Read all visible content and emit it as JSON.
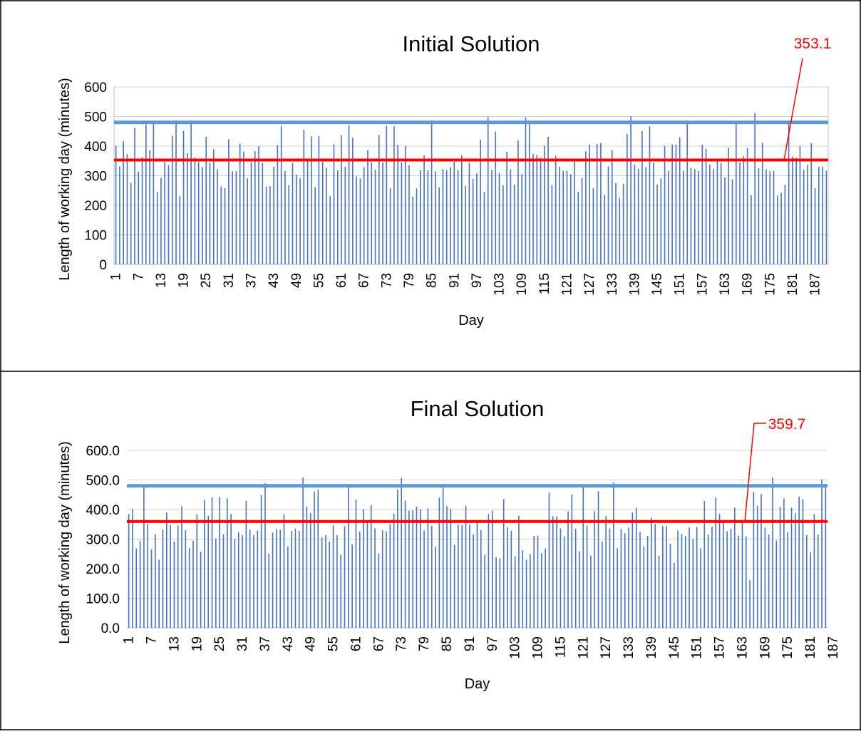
{
  "chart_data": [
    {
      "type": "bar",
      "title": "Initial Solution",
      "xlabel": "Day",
      "ylabel": "Length of working day (minutes)",
      "ylim": [
        0,
        600
      ],
      "yticks": [
        "0",
        "100",
        "200",
        "300",
        "400",
        "500",
        "600"
      ],
      "xtick_labels": [
        "1",
        "7",
        "13",
        "19",
        "25",
        "31",
        "37",
        "43",
        "49",
        "55",
        "61",
        "67",
        "73",
        "79",
        "85",
        "91",
        "97",
        "103",
        "109",
        "115",
        "121",
        "127",
        "133",
        "139",
        "145",
        "151",
        "157",
        "163",
        "169",
        "175",
        "181",
        "187"
      ],
      "grid": true,
      "series": [
        {
          "values": [
            401,
            331,
            416,
            373,
            276,
            461,
            314,
            362,
            473,
            386,
            478,
            245,
            293,
            347,
            336,
            435,
            487,
            231,
            452,
            376,
            487,
            362,
            346,
            329,
            432,
            344,
            389,
            321,
            264,
            258,
            423,
            315,
            315,
            408,
            381,
            291,
            346,
            383,
            400,
            343,
            263,
            265,
            330,
            403,
            469,
            316,
            268,
            343,
            304,
            291,
            455,
            349,
            433,
            261,
            434,
            347,
            327,
            231,
            406,
            318,
            437,
            330,
            471,
            428,
            298,
            291,
            329,
            386,
            346,
            320,
            438,
            345,
            468,
            257,
            467,
            404,
            345,
            400,
            335,
            229,
            257,
            318,
            369,
            318,
            487,
            315,
            260,
            322,
            318,
            329,
            347,
            319,
            369,
            266,
            344,
            289,
            308,
            422,
            244,
            499,
            319,
            449,
            309,
            267,
            381,
            321,
            270,
            419,
            305,
            497,
            479,
            374,
            370,
            361,
            401,
            432,
            268,
            367,
            330,
            317,
            317,
            305,
            349,
            245,
            292,
            382,
            405,
            257,
            407,
            410,
            235,
            331,
            386,
            275,
            225,
            272,
            441,
            500,
            337,
            323,
            451,
            329,
            467,
            344,
            270,
            291,
            400,
            317,
            405,
            405,
            430,
            317,
            486,
            327,
            322,
            316,
            404,
            390,
            338,
            322,
            353,
            343,
            294,
            395,
            288,
            481,
            345,
            366,
            394,
            234,
            512,
            325,
            411,
            322,
            315,
            317,
            233,
            242,
            269,
            475,
            365,
            360,
            401,
            320,
            336,
            410,
            258,
            330,
            330,
            317
          ]
        }
      ],
      "reference_lines": [
        {
          "value": 480,
          "color": "#5b9bd5"
        },
        {
          "value": 353.1,
          "color": "#ff0000",
          "label": "353.1"
        }
      ],
      "bar_color": "#4472c4"
    },
    {
      "type": "bar",
      "title": "Final Solution",
      "xlabel": "Day",
      "ylabel": "Length of working day (minutes)",
      "ylim": [
        0,
        600
      ],
      "yticks": [
        "0.0",
        "100.0",
        "200.0",
        "300.0",
        "400.0",
        "500.0",
        "600.0"
      ],
      "xtick_labels": [
        "1",
        "7",
        "13",
        "19",
        "25",
        "31",
        "37",
        "43",
        "49",
        "55",
        "61",
        "67",
        "73",
        "79",
        "85",
        "91",
        "97",
        "103",
        "109",
        "115",
        "121",
        "127",
        "133",
        "139",
        "145",
        "151",
        "157",
        "163",
        "169",
        "175",
        "181",
        "187"
      ],
      "grid": true,
      "series": [
        {
          "values": [
            385,
            402,
            268,
            294,
            479,
            351,
            265,
            316,
            230,
            332,
            390,
            348,
            292,
            346,
            411,
            330,
            269,
            295,
            384,
            257,
            432,
            378,
            441,
            301,
            442,
            316,
            438,
            385,
            299,
            323,
            313,
            429,
            332,
            313,
            329,
            449,
            489,
            251,
            322,
            334,
            331,
            384,
            276,
            328,
            335,
            327,
            508,
            410,
            387,
            461,
            467,
            305,
            314,
            292,
            346,
            314,
            247,
            344,
            476,
            282,
            434,
            326,
            401,
            356,
            415,
            336,
            251,
            330,
            326,
            350,
            386,
            468,
            506,
            430,
            396,
            397,
            410,
            401,
            329,
            404,
            345,
            274,
            440,
            474,
            411,
            403,
            281,
            350,
            347,
            413,
            349,
            316,
            361,
            330,
            247,
            384,
            396,
            239,
            235,
            435,
            340,
            328,
            242,
            379,
            263,
            230,
            249,
            311,
            312,
            252,
            268,
            457,
            377,
            377,
            336,
            309,
            394,
            451,
            335,
            259,
            484,
            346,
            244,
            395,
            462,
            292,
            377,
            336,
            491,
            269,
            334,
            320,
            339,
            390,
            406,
            325,
            276,
            311,
            372,
            351,
            244,
            344,
            344,
            284,
            220,
            329,
            317,
            311,
            340,
            300,
            341,
            269,
            429,
            315,
            342,
            440,
            385,
            363,
            326,
            335,
            406,
            312,
            361,
            309,
            162,
            459,
            412,
            452,
            339,
            315,
            508,
            295,
            409,
            437,
            324,
            406,
            387,
            444,
            434,
            314,
            255,
            385,
            315,
            502,
            486
          ]
        }
      ],
      "reference_lines": [
        {
          "value": 480,
          "color": "#5b9bd5"
        },
        {
          "value": 359.7,
          "color": "#ff0000",
          "label": "359.7"
        }
      ],
      "bar_color": "#4472c4"
    }
  ]
}
